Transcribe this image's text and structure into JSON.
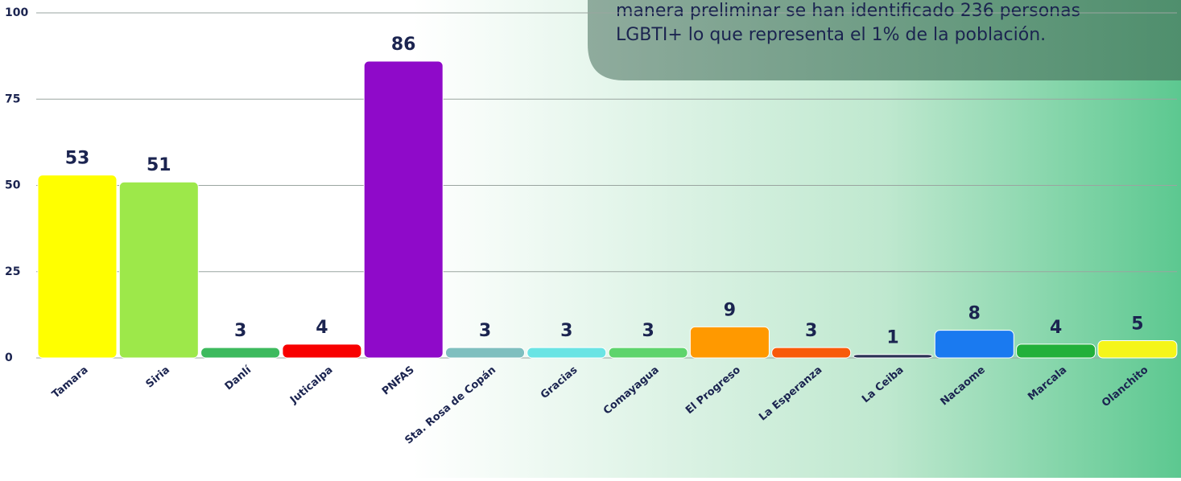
{
  "chart_data": {
    "type": "bar",
    "annotation": [
      "manera preliminar se han identificado 236 personas",
      "LGBTI+ lo que representa el 1% de la población."
    ],
    "categories": [
      "Tamara",
      "Siria",
      "Danlí",
      "Juticalpa",
      "PNFAS",
      "Sta. Rosa de Copán",
      "Gracias",
      "Comayagua",
      "El Progreso",
      "La Esperanza",
      "La Ceiba",
      "Nacaome",
      "Marcala",
      "Olanchito"
    ],
    "values": [
      53,
      51,
      3,
      4,
      86,
      3,
      3,
      3,
      9,
      3,
      1,
      8,
      4,
      5
    ],
    "colors": [
      "#ffff00",
      "#9de84a",
      "#3dba5e",
      "#f80000",
      "#8f0ac9",
      "#7fbfbf",
      "#6ae4e4",
      "#5ed46c",
      "#ff9900",
      "#f85a0a",
      "#2b3255",
      "#1a7af0",
      "#22b03a",
      "#f5f51a"
    ],
    "ylim": [
      0,
      100
    ],
    "yticks": [
      0,
      25,
      50,
      75,
      100
    ],
    "grid": true
  }
}
